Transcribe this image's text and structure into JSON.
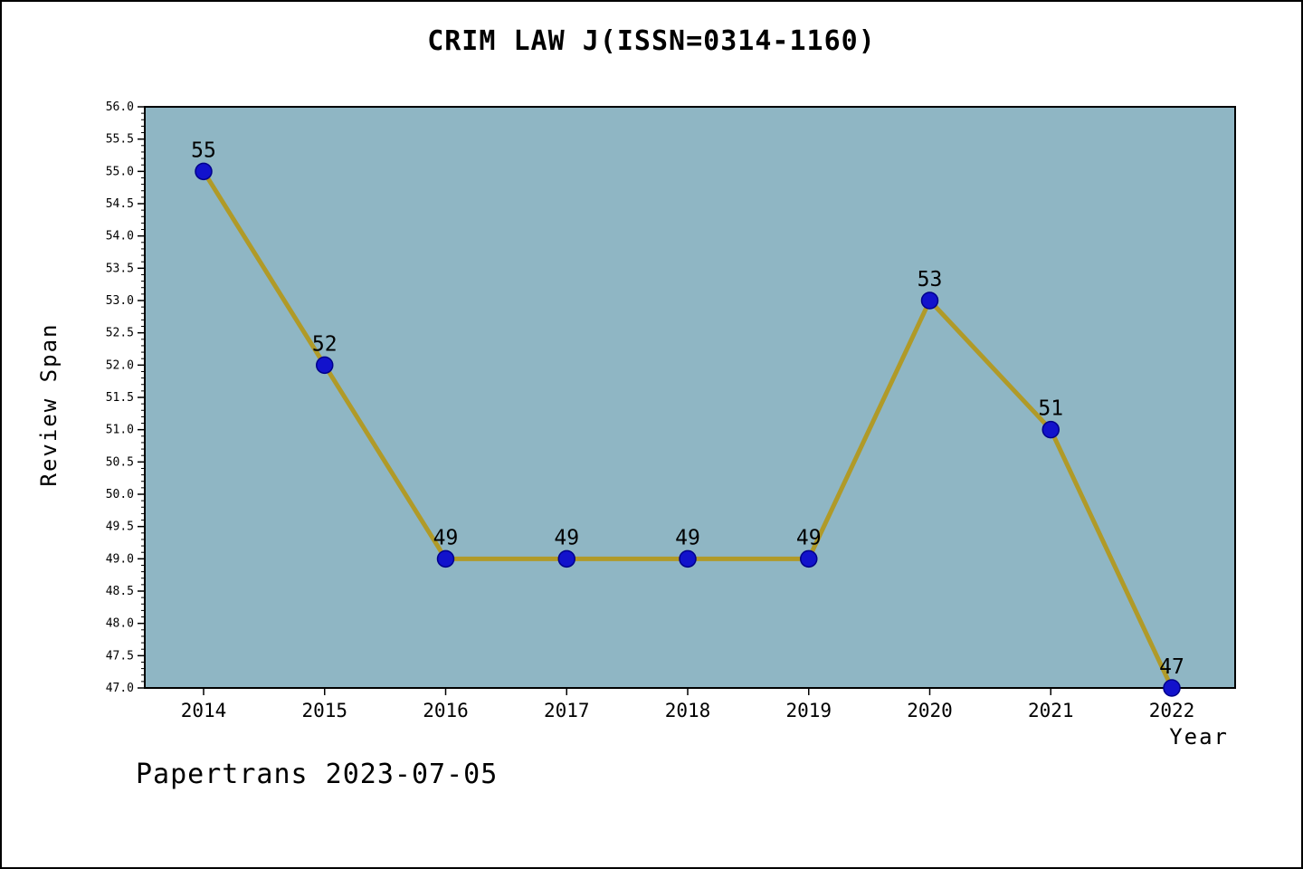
{
  "chart_data": {
    "type": "line",
    "title": "CRIM LAW J(ISSN=0314-1160)",
    "xlabel": "Year",
    "ylabel": "Review Span",
    "categories": [
      2014,
      2015,
      2016,
      2017,
      2018,
      2019,
      2020,
      2021,
      2022
    ],
    "values": [
      55,
      52,
      49,
      49,
      49,
      49,
      53,
      51,
      47
    ],
    "point_labels": [
      "55",
      "52",
      "49",
      "49",
      "49",
      "49",
      "53",
      "51",
      "47"
    ],
    "ylim": [
      47.0,
      56.0
    ],
    "ytick_step": 0.5,
    "ytick_minor_step": 0.1,
    "grid": false,
    "legend": "none",
    "colors": {
      "line": "#b09a28",
      "marker_fill": "#1212cc",
      "marker_edge": "#00008b",
      "plot_background": "#8fb6c4",
      "axis": "#000000",
      "text": "#000000"
    }
  },
  "footer": {
    "note": "Papertrans 2023-07-05"
  }
}
